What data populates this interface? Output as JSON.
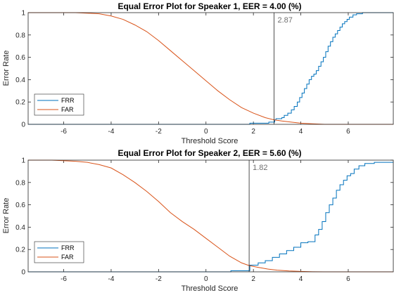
{
  "chart_data": [
    {
      "type": "line",
      "title": "Equal Error Plot for Speaker 1, EER = 4.00 (%)",
      "xlabel": "Threshold Score",
      "ylabel": "Error Rate",
      "xlim": [
        -7.5,
        7.9
      ],
      "ylim": [
        0,
        1
      ],
      "xticks": [
        -6,
        -4,
        -2,
        0,
        2,
        4,
        6
      ],
      "yticks": [
        0,
        0.2,
        0.4,
        0.6,
        0.8,
        1
      ],
      "threshold": 2.87,
      "threshold_label": "2.87",
      "legend_placement": "bottom-left",
      "grid": false,
      "series": [
        {
          "name": "FRR",
          "color": "#0072bd",
          "step": true,
          "x": [
            -7.5,
            1.8,
            1.85,
            2.6,
            2.65,
            2.9,
            2.95,
            3.2,
            3.3,
            3.45,
            3.6,
            3.72,
            3.85,
            3.95,
            4.05,
            4.15,
            4.25,
            4.35,
            4.45,
            4.55,
            4.65,
            4.75,
            4.85,
            4.95,
            5.05,
            5.15,
            5.25,
            5.35,
            5.45,
            5.55,
            5.65,
            5.75,
            5.85,
            5.95,
            6.05,
            6.2,
            6.35,
            6.6,
            7.9
          ],
          "y": [
            0,
            0,
            0.01,
            0.01,
            0.02,
            0.04,
            0.05,
            0.06,
            0.08,
            0.1,
            0.13,
            0.16,
            0.2,
            0.24,
            0.28,
            0.32,
            0.36,
            0.4,
            0.43,
            0.45,
            0.48,
            0.52,
            0.56,
            0.6,
            0.65,
            0.7,
            0.74,
            0.78,
            0.81,
            0.84,
            0.87,
            0.9,
            0.92,
            0.94,
            0.96,
            0.98,
            0.99,
            1,
            1
          ]
        },
        {
          "name": "FAR",
          "color": "#d95319",
          "step": false,
          "x": [
            -7.5,
            -6.5,
            -5.5,
            -4.5,
            -4,
            -3.5,
            -3,
            -2.5,
            -2,
            -1.5,
            -1,
            -0.5,
            0,
            0.5,
            1,
            1.5,
            2,
            2.5,
            2.87,
            3.2,
            3.6,
            4,
            4.5,
            5,
            6,
            7.9
          ],
          "y": [
            1,
            1,
            1,
            0.99,
            0.97,
            0.94,
            0.89,
            0.83,
            0.75,
            0.66,
            0.57,
            0.48,
            0.39,
            0.3,
            0.22,
            0.15,
            0.1,
            0.06,
            0.04,
            0.03,
            0.02,
            0.01,
            0.005,
            0,
            0,
            0
          ]
        }
      ]
    },
    {
      "type": "line",
      "title": "Equal Error Plot for Speaker 2, EER = 5.60 (%)",
      "xlabel": "Threshold Score",
      "ylabel": "Error Rate",
      "xlim": [
        -7.5,
        7.9
      ],
      "ylim": [
        0,
        1
      ],
      "xticks": [
        -6,
        -4,
        -2,
        0,
        2,
        4,
        6
      ],
      "yticks": [
        0,
        0.2,
        0.4,
        0.6,
        0.8,
        1
      ],
      "threshold": 1.82,
      "threshold_label": "1.82",
      "legend_placement": "bottom-left",
      "grid": false,
      "series": [
        {
          "name": "FRR",
          "color": "#0072bd",
          "step": true,
          "x": [
            -7.5,
            1,
            1.05,
            1.8,
            1.85,
            2.2,
            2.5,
            2.8,
            3.1,
            3.4,
            3.7,
            4,
            4.3,
            4.6,
            4.75,
            4.9,
            5.05,
            5.2,
            5.35,
            5.5,
            5.65,
            5.8,
            5.95,
            6.1,
            6.25,
            6.45,
            6.7,
            7.1,
            7.9
          ],
          "y": [
            0,
            0,
            0.01,
            0.01,
            0.06,
            0.08,
            0.1,
            0.13,
            0.16,
            0.19,
            0.22,
            0.26,
            0.27,
            0.33,
            0.38,
            0.45,
            0.53,
            0.6,
            0.66,
            0.73,
            0.78,
            0.82,
            0.86,
            0.88,
            0.92,
            0.95,
            0.97,
            0.98,
            0.98
          ]
        },
        {
          "name": "FAR",
          "color": "#d95319",
          "step": false,
          "x": [
            -7.5,
            -6.5,
            -5.5,
            -5,
            -4.5,
            -4,
            -3.5,
            -3,
            -2.5,
            -2,
            -1.5,
            -1,
            -0.5,
            0,
            0.5,
            1,
            1.5,
            1.82,
            2.2,
            2.6,
            3,
            3.5,
            4,
            4.5,
            5,
            7.9
          ],
          "y": [
            1,
            1,
            0.99,
            0.98,
            0.96,
            0.93,
            0.87,
            0.8,
            0.72,
            0.63,
            0.53,
            0.45,
            0.38,
            0.3,
            0.22,
            0.14,
            0.08,
            0.056,
            0.04,
            0.025,
            0.015,
            0.008,
            0.004,
            0.001,
            0,
            0
          ]
        }
      ]
    }
  ]
}
